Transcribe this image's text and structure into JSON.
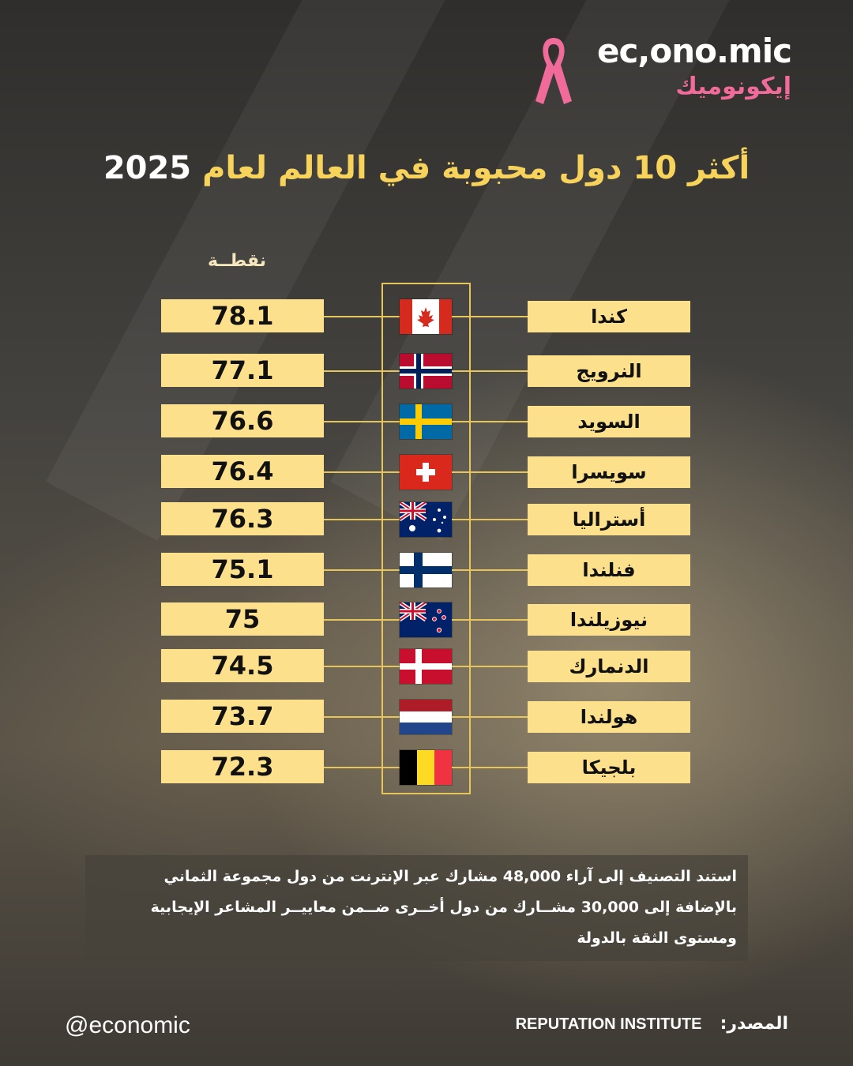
{
  "brand": {
    "name_en": "ec,ono.mic",
    "name_ar": "إيكونوميك",
    "ribbon_color": "#f06a9a"
  },
  "title": {
    "main": "أكثر 10 دول محبوبة في العالم لعام",
    "year": "2025"
  },
  "chart_data": {
    "type": "table",
    "title": "أكثر 10 دول محبوبة في العالم لعام 2025",
    "value_label": "نقطــة",
    "categories": [
      "كندا",
      "النرويج",
      "السويد",
      "سويسرا",
      "أستراليا",
      "فنلندا",
      "نيوزيلندا",
      "الدنمارك",
      "هولندا",
      "بلجيكا"
    ],
    "values": [
      78.1,
      77.1,
      76.6,
      76.4,
      76.3,
      75.1,
      75,
      74.5,
      73.7,
      72.3
    ],
    "value_labels": [
      "78.1",
      "77.1",
      "76.6",
      "76.4",
      "76.3",
      "75.1",
      "75",
      "74.5",
      "73.7",
      "72.3"
    ],
    "flags": [
      "canada-flag-icon",
      "norway-flag-icon",
      "sweden-flag-icon",
      "switzerland-flag-icon",
      "australia-flag-icon",
      "finland-flag-icon",
      "new-zealand-flag-icon",
      "denmark-flag-icon",
      "netherlands-flag-icon",
      "belgium-flag-icon"
    ],
    "box_color": "#fde08b",
    "accent_color": "#e6c65a"
  },
  "note": {
    "line1": "استند التصنيف إلى آراء 48,000 مشارك عبر الإنترنت من دول مجموعة الثماني",
    "line2": "بالإضافة إلى 30,000 مشــارك من دول أخــرى ضــمن معاييــر المشاعر الإيجابية",
    "line3": "ومستوى الثقة بالدولة"
  },
  "footer": {
    "handle": "@economic",
    "source_label": "المصدر:",
    "source_name": "REPUTATION INSTITUTE"
  }
}
